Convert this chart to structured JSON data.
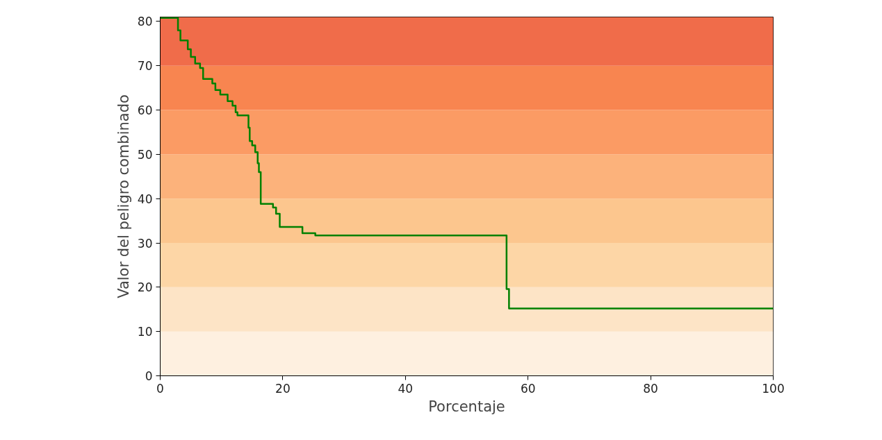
{
  "chart_data": {
    "type": "step",
    "xlabel": "Porcentaje",
    "ylabel": "Valor del peligro combinado",
    "x": [
      0,
      2.9,
      3.3,
      4.5,
      5.0,
      5.7,
      6.5,
      7.0,
      8.5,
      9.0,
      9.8,
      11.0,
      11.8,
      12.3,
      12.6,
      14.4,
      14.6,
      15.0,
      15.5,
      15.9,
      16.1,
      16.4,
      18.4,
      18.9,
      19.5,
      23.2,
      25.3,
      56.5,
      56.9,
      100
    ],
    "series": [
      {
        "color": "#008000",
        "values": [
          80.8,
          78,
          75.7,
          73.7,
          72,
          70.5,
          69.5,
          67,
          66,
          64.5,
          63.5,
          62,
          61,
          59.5,
          58.8,
          56,
          53,
          52,
          50.5,
          48,
          46,
          38.8,
          38.0,
          36.6,
          33.6,
          32.2,
          31.7,
          19.6,
          15.2,
          15.2
        ]
      }
    ],
    "bands": [
      {
        "axis": "y",
        "from": 0,
        "to": 10,
        "color": "#fef0e0"
      },
      {
        "axis": "y",
        "from": 10,
        "to": 20,
        "color": "#fde4c6"
      },
      {
        "axis": "y",
        "from": 20,
        "to": 30,
        "color": "#fdd6a6"
      },
      {
        "axis": "y",
        "from": 30,
        "to": 40,
        "color": "#fcc68e"
      },
      {
        "axis": "y",
        "from": 40,
        "to": 50,
        "color": "#fcb27b"
      },
      {
        "axis": "y",
        "from": 50,
        "to": 60,
        "color": "#fb9b64"
      },
      {
        "axis": "y",
        "from": 60,
        "to": 70,
        "color": "#f88550"
      },
      {
        "axis": "y",
        "from": 70,
        "to": 81,
        "color": "#f06c4a"
      }
    ],
    "xlim": [
      0,
      100
    ],
    "ylim": [
      0,
      81
    ],
    "xticks": [
      0,
      20,
      40,
      60,
      80,
      100
    ],
    "yticks": [
      0,
      10,
      20,
      30,
      40,
      50,
      60,
      70,
      80
    ],
    "grid": false,
    "line_style": "solid"
  }
}
